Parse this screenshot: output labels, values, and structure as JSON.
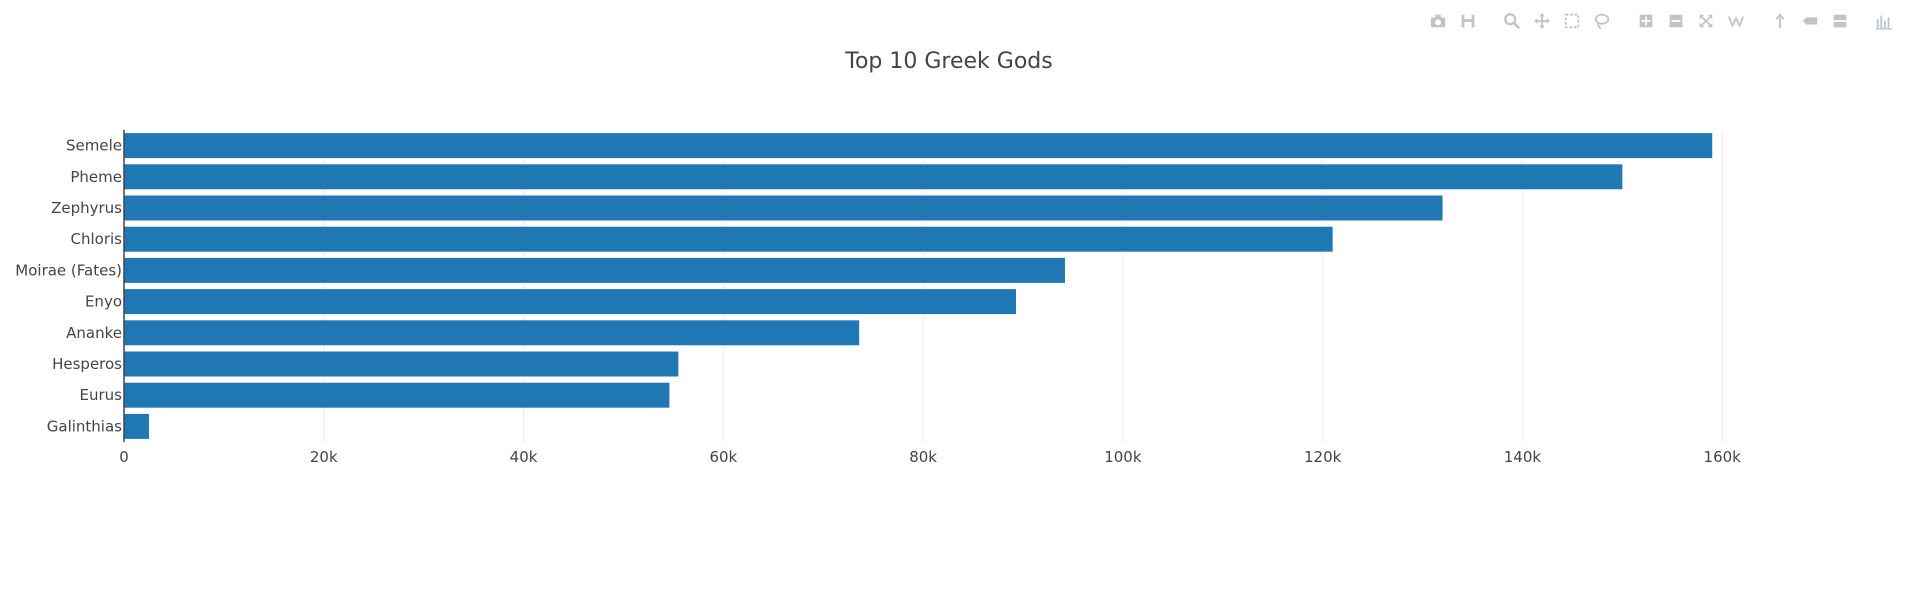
{
  "chart_data": {
    "type": "bar",
    "orientation": "horizontal",
    "title": "Top 10 Greek Gods",
    "categories": [
      "Semele",
      "Pheme",
      "Zephyrus",
      "Chloris",
      "Moirae (Fates)",
      "Enyo",
      "Ananke",
      "Hesperos",
      "Eurus",
      "Galinthias"
    ],
    "values": [
      159000,
      150000,
      132000,
      121000,
      94200,
      89300,
      73600,
      55500,
      54600,
      2500
    ],
    "xlim": [
      0,
      180000
    ],
    "x_ticks": [
      0,
      20000,
      40000,
      60000,
      80000,
      100000,
      120000,
      140000,
      160000
    ],
    "x_tick_labels": [
      "0",
      "20k",
      "40k",
      "60k",
      "80k",
      "100k",
      "120k",
      "140k",
      "160k"
    ],
    "xlabel": "",
    "ylabel": "",
    "grid": true,
    "bar_color": "#1f77b4"
  },
  "modebar": {
    "icons": [
      "camera-icon",
      "save-icon",
      "zoom-icon",
      "pan-icon",
      "box-select-icon",
      "lasso-icon",
      "zoom-in-icon",
      "zoom-out-icon",
      "autoscale-icon",
      "reset-axes-icon",
      "spike-lines-icon",
      "hover-closest-icon",
      "hover-compare-icon",
      "plotly-logo-icon"
    ]
  }
}
